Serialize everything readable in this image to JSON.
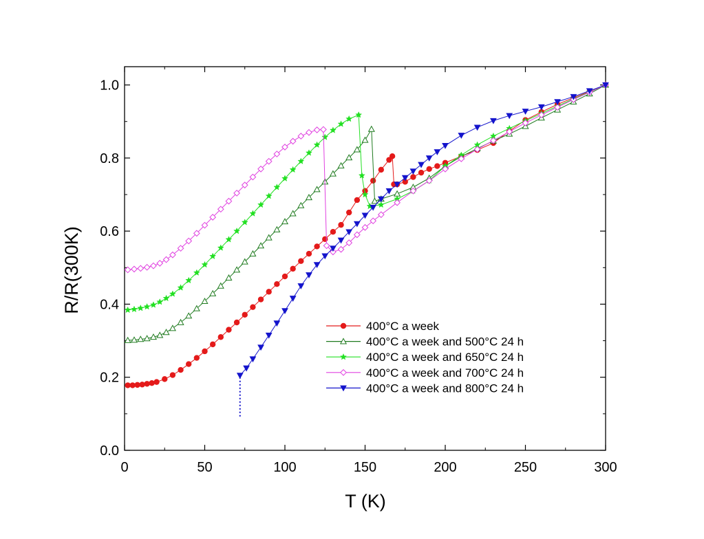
{
  "chart_data": {
    "type": "scatter",
    "title": "",
    "xlabel": "T (K)",
    "ylabel": "R/R(300K)",
    "xlim": [
      0,
      300
    ],
    "ylim": [
      0,
      1.05
    ],
    "x_ticks": [
      "0",
      "50",
      "100",
      "150",
      "200",
      "250",
      "300"
    ],
    "y_ticks": [
      "0.0",
      "0.2",
      "0.4",
      "0.6",
      "0.8",
      "1.0"
    ],
    "grid": false,
    "legend_position": "lower-right",
    "series": [
      {
        "name": "400°C a week",
        "color": "#e41a1a",
        "marker": "filled-circle",
        "line": "solid",
        "points": [
          [
            2,
            0.178
          ],
          [
            5,
            0.178
          ],
          [
            8,
            0.179
          ],
          [
            11,
            0.18
          ],
          [
            14,
            0.182
          ],
          [
            17,
            0.184
          ],
          [
            20,
            0.187
          ],
          [
            25,
            0.195
          ],
          [
            30,
            0.206
          ],
          [
            35,
            0.22
          ],
          [
            40,
            0.236
          ],
          [
            45,
            0.253
          ],
          [
            50,
            0.271
          ],
          [
            55,
            0.29
          ],
          [
            60,
            0.31
          ],
          [
            65,
            0.33
          ],
          [
            70,
            0.35
          ],
          [
            75,
            0.371
          ],
          [
            80,
            0.392
          ],
          [
            85,
            0.413
          ],
          [
            90,
            0.434
          ],
          [
            95,
            0.455
          ],
          [
            100,
            0.476
          ],
          [
            105,
            0.497
          ],
          [
            110,
            0.518
          ],
          [
            115,
            0.538
          ],
          [
            120,
            0.558
          ],
          [
            125,
            0.578
          ],
          [
            130,
            0.598
          ],
          [
            135,
            0.617
          ],
          [
            140,
            0.651
          ],
          [
            145,
            0.685
          ],
          [
            150,
            0.71
          ],
          [
            155,
            0.738
          ],
          [
            160,
            0.768
          ],
          [
            165,
            0.795
          ],
          [
            167,
            0.805
          ],
          [
            168,
            0.728
          ],
          [
            170,
            0.728
          ],
          [
            175,
            0.735
          ],
          [
            180,
            0.748
          ],
          [
            185,
            0.76
          ],
          [
            190,
            0.77
          ],
          [
            195,
            0.778
          ],
          [
            200,
            0.787
          ],
          [
            210,
            0.805
          ],
          [
            220,
            0.822
          ],
          [
            230,
            0.841
          ],
          [
            240,
            0.874
          ],
          [
            250,
            0.904
          ],
          [
            260,
            0.926
          ],
          [
            270,
            0.947
          ],
          [
            280,
            0.965
          ],
          [
            290,
            0.982
          ],
          [
            300,
            1.0
          ]
        ]
      },
      {
        "name": "400°C a week and 500°C 24 h",
        "color": "#1e7a1e",
        "marker": "open-triangle-up",
        "line": "solid",
        "points": [
          [
            2,
            0.301
          ],
          [
            6,
            0.302
          ],
          [
            10,
            0.304
          ],
          [
            14,
            0.306
          ],
          [
            18,
            0.31
          ],
          [
            22,
            0.315
          ],
          [
            26,
            0.323
          ],
          [
            30,
            0.334
          ],
          [
            35,
            0.35
          ],
          [
            40,
            0.368
          ],
          [
            45,
            0.388
          ],
          [
            50,
            0.408
          ],
          [
            55,
            0.429
          ],
          [
            60,
            0.45
          ],
          [
            65,
            0.472
          ],
          [
            70,
            0.494
          ],
          [
            75,
            0.516
          ],
          [
            80,
            0.538
          ],
          [
            85,
            0.56
          ],
          [
            90,
            0.582
          ],
          [
            95,
            0.604
          ],
          [
            100,
            0.626
          ],
          [
            105,
            0.648
          ],
          [
            110,
            0.67
          ],
          [
            115,
            0.692
          ],
          [
            120,
            0.714
          ],
          [
            125,
            0.735
          ],
          [
            130,
            0.757
          ],
          [
            135,
            0.779
          ],
          [
            140,
            0.801
          ],
          [
            145,
            0.823
          ],
          [
            150,
            0.849
          ],
          [
            154,
            0.879
          ],
          [
            156,
            0.682
          ],
          [
            160,
            0.688
          ],
          [
            170,
            0.702
          ],
          [
            180,
            0.72
          ],
          [
            190,
            0.745
          ],
          [
            200,
            0.778
          ],
          [
            210,
            0.804
          ],
          [
            220,
            0.826
          ],
          [
            230,
            0.847
          ],
          [
            240,
            0.866
          ],
          [
            250,
            0.887
          ],
          [
            260,
            0.91
          ],
          [
            270,
            0.932
          ],
          [
            280,
            0.954
          ],
          [
            290,
            0.976
          ],
          [
            300,
            1.0
          ]
        ]
      },
      {
        "name": "400°C a week and 650°C 24 h",
        "color": "#22e022",
        "marker": "star",
        "line": "solid",
        "points": [
          [
            2,
            0.384
          ],
          [
            6,
            0.386
          ],
          [
            10,
            0.389
          ],
          [
            14,
            0.393
          ],
          [
            18,
            0.398
          ],
          [
            22,
            0.406
          ],
          [
            26,
            0.416
          ],
          [
            30,
            0.428
          ],
          [
            35,
            0.445
          ],
          [
            40,
            0.465
          ],
          [
            45,
            0.486
          ],
          [
            50,
            0.508
          ],
          [
            55,
            0.531
          ],
          [
            60,
            0.554
          ],
          [
            65,
            0.577
          ],
          [
            70,
            0.6
          ],
          [
            75,
            0.624
          ],
          [
            80,
            0.648
          ],
          [
            85,
            0.672
          ],
          [
            90,
            0.696
          ],
          [
            95,
            0.72
          ],
          [
            100,
            0.744
          ],
          [
            105,
            0.768
          ],
          [
            110,
            0.791
          ],
          [
            115,
            0.814
          ],
          [
            120,
            0.836
          ],
          [
            125,
            0.857
          ],
          [
            130,
            0.876
          ],
          [
            135,
            0.893
          ],
          [
            140,
            0.907
          ],
          [
            146,
            0.918
          ],
          [
            148,
            0.752
          ],
          [
            150,
            0.7
          ],
          [
            153,
            0.668
          ],
          [
            160,
            0.672
          ],
          [
            170,
            0.688
          ],
          [
            180,
            0.71
          ],
          [
            190,
            0.738
          ],
          [
            200,
            0.778
          ],
          [
            210,
            0.808
          ],
          [
            220,
            0.836
          ],
          [
            230,
            0.86
          ],
          [
            240,
            0.881
          ],
          [
            250,
            0.902
          ],
          [
            260,
            0.922
          ],
          [
            270,
            0.942
          ],
          [
            280,
            0.962
          ],
          [
            290,
            0.981
          ],
          [
            300,
            1.0
          ]
        ]
      },
      {
        "name": "400°C a week and 700°C 24 h",
        "color": "#e040e0",
        "marker": "open-diamond",
        "line": "solid",
        "points": [
          [
            2,
            0.494
          ],
          [
            6,
            0.496
          ],
          [
            10,
            0.498
          ],
          [
            14,
            0.501
          ],
          [
            18,
            0.505
          ],
          [
            22,
            0.512
          ],
          [
            26,
            0.522
          ],
          [
            30,
            0.535
          ],
          [
            35,
            0.553
          ],
          [
            40,
            0.573
          ],
          [
            45,
            0.594
          ],
          [
            50,
            0.616
          ],
          [
            55,
            0.638
          ],
          [
            60,
            0.66
          ],
          [
            65,
            0.682
          ],
          [
            70,
            0.704
          ],
          [
            75,
            0.726
          ],
          [
            80,
            0.748
          ],
          [
            85,
            0.77
          ],
          [
            90,
            0.791
          ],
          [
            95,
            0.811
          ],
          [
            100,
            0.83
          ],
          [
            105,
            0.846
          ],
          [
            110,
            0.86
          ],
          [
            115,
            0.87
          ],
          [
            120,
            0.877
          ],
          [
            124,
            0.878
          ],
          [
            126,
            0.56
          ],
          [
            130,
            0.543
          ],
          [
            135,
            0.55
          ],
          [
            140,
            0.568
          ],
          [
            145,
            0.59
          ],
          [
            150,
            0.61
          ],
          [
            155,
            0.628
          ],
          [
            160,
            0.645
          ],
          [
            170,
            0.678
          ],
          [
            180,
            0.71
          ],
          [
            190,
            0.738
          ],
          [
            200,
            0.77
          ],
          [
            210,
            0.798
          ],
          [
            220,
            0.824
          ],
          [
            230,
            0.848
          ],
          [
            240,
            0.872
          ],
          [
            250,
            0.896
          ],
          [
            260,
            0.918
          ],
          [
            270,
            0.939
          ],
          [
            280,
            0.96
          ],
          [
            290,
            0.98
          ],
          [
            300,
            1.0
          ]
        ]
      },
      {
        "name": "400°C a week and 800°C 24 h",
        "color": "#1414cc",
        "marker": "filled-triangle-down",
        "line": "solid",
        "points": [
          [
            72,
            0.205
          ],
          [
            76,
            0.225
          ],
          [
            80,
            0.25
          ],
          [
            85,
            0.282
          ],
          [
            90,
            0.315
          ],
          [
            95,
            0.348
          ],
          [
            100,
            0.382
          ],
          [
            105,
            0.416
          ],
          [
            110,
            0.45
          ],
          [
            115,
            0.48
          ],
          [
            120,
            0.508
          ],
          [
            125,
            0.532
          ],
          [
            130,
            0.553
          ],
          [
            135,
            0.575
          ],
          [
            140,
            0.598
          ],
          [
            145,
            0.62
          ],
          [
            150,
            0.643
          ],
          [
            155,
            0.665
          ],
          [
            160,
            0.688
          ],
          [
            165,
            0.71
          ],
          [
            170,
            0.728
          ],
          [
            175,
            0.746
          ],
          [
            180,
            0.764
          ],
          [
            185,
            0.782
          ],
          [
            190,
            0.8
          ],
          [
            195,
            0.817
          ],
          [
            200,
            0.834
          ],
          [
            210,
            0.862
          ],
          [
            220,
            0.884
          ],
          [
            230,
            0.902
          ],
          [
            240,
            0.916
          ],
          [
            250,
            0.928
          ],
          [
            260,
            0.94
          ],
          [
            270,
            0.954
          ],
          [
            280,
            0.968
          ],
          [
            290,
            0.984
          ],
          [
            300,
            1.0
          ]
        ],
        "extra_segment": {
          "style": "dotted",
          "from": [
            72,
            0.2
          ],
          "to": [
            72,
            0.09
          ]
        }
      }
    ]
  }
}
